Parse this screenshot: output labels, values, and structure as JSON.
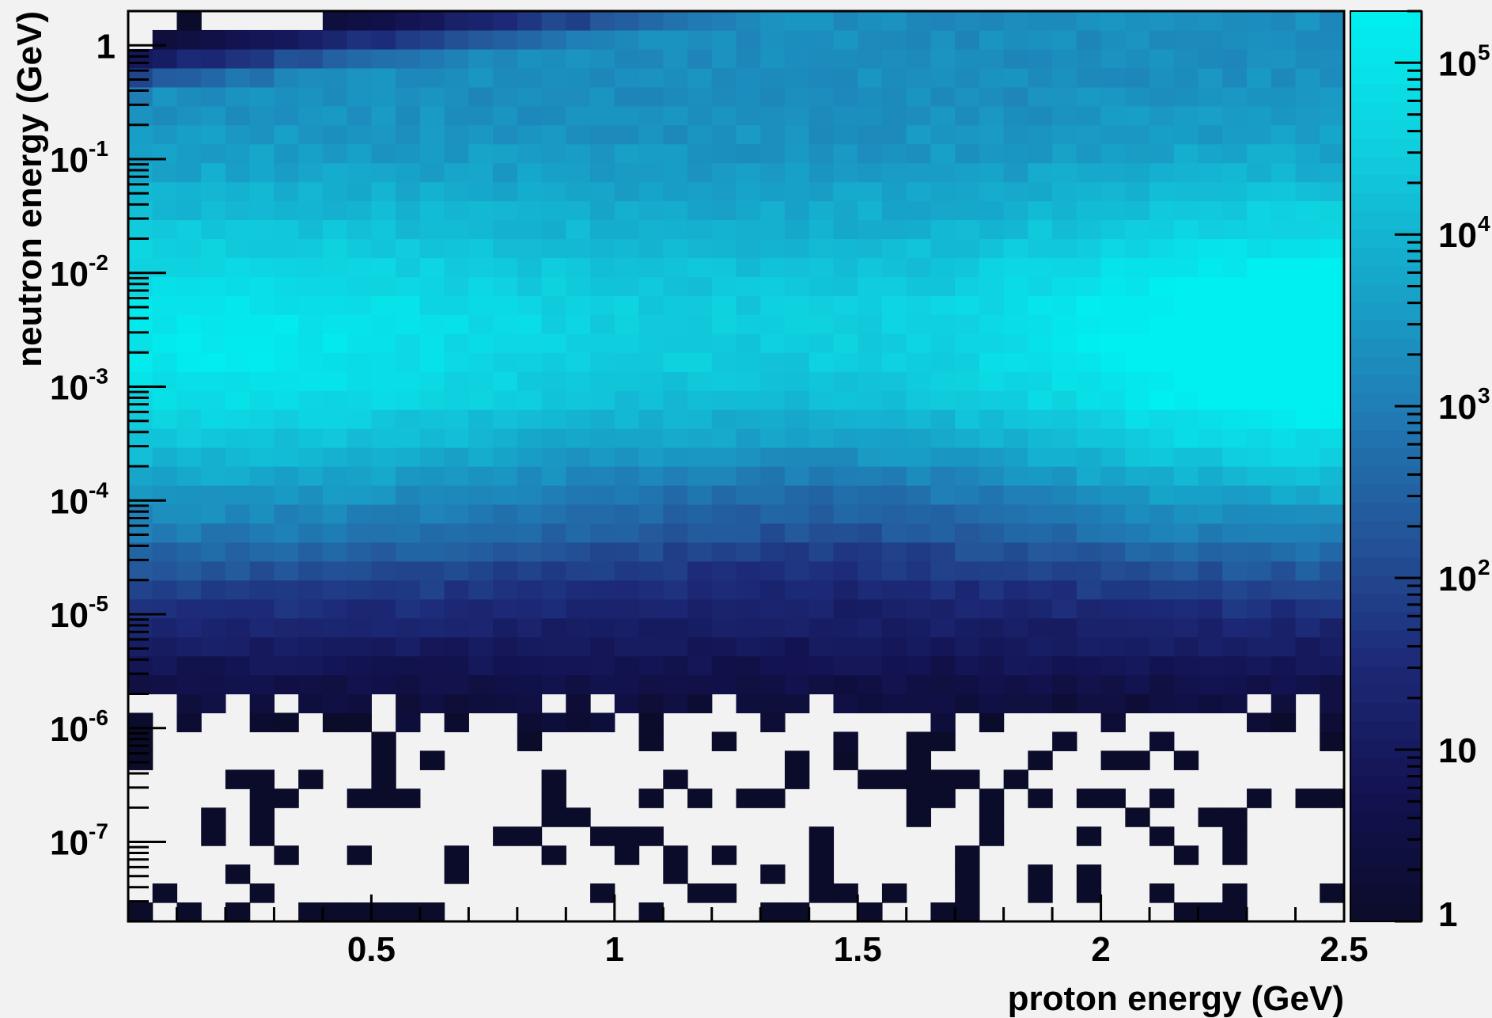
{
  "chart_data": {
    "type": "heatmap",
    "title": "",
    "xlabel": "proton energy  (GeV)",
    "ylabel": "neutron energy  (GeV)",
    "x_range": [
      0.0,
      2.5
    ],
    "y_range": [
      2e-08,
      2.0
    ],
    "y_scale": "log",
    "z_range": [
      1,
      200000
    ],
    "z_scale": "log",
    "x_ticks": [
      "0.5",
      "1",
      "1.5",
      "2",
      "2.5"
    ],
    "y_ticks": [
      {
        "value": 1,
        "label": "1"
      },
      {
        "value": 0.1,
        "label": "10",
        "exp": "-1"
      },
      {
        "value": 0.01,
        "label": "10",
        "exp": "-2"
      },
      {
        "value": 0.001,
        "label": "10",
        "exp": "-3"
      },
      {
        "value": 0.0001,
        "label": "10",
        "exp": "-4"
      },
      {
        "value": 1e-05,
        "label": "10",
        "exp": "-5"
      },
      {
        "value": 1e-06,
        "label": "10",
        "exp": "-6"
      },
      {
        "value": 1e-07,
        "label": "10",
        "exp": "-7"
      }
    ],
    "z_ticks": [
      {
        "value": 1,
        "label": "1"
      },
      {
        "value": 10,
        "label": "10"
      },
      {
        "value": 100,
        "label": "10",
        "exp": "2"
      },
      {
        "value": 1000,
        "label": "10",
        "exp": "3"
      },
      {
        "value": 10000,
        "label": "10",
        "exp": "4"
      },
      {
        "value": 100000,
        "label": "10",
        "exp": "5"
      }
    ],
    "bins": {
      "x": 50,
      "y_per_decade": 6
    },
    "palette": [
      "#0b0b2a",
      "#131352",
      "#1d2a78",
      "#24569a",
      "#1f7fb6",
      "#16a9cc",
      "#0fd1df",
      "#00f0f0"
    ],
    "grid": false,
    "legend": "colorbar-right"
  }
}
